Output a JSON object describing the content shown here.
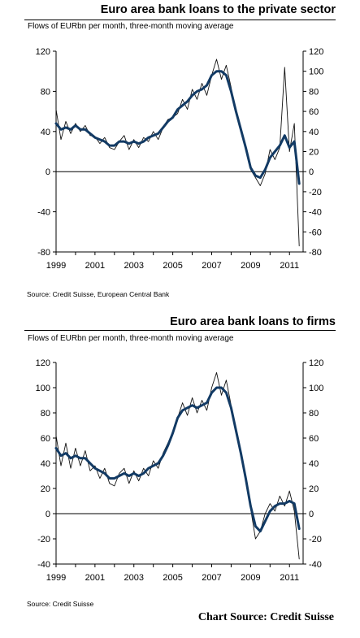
{
  "colors": {
    "raw": "#111111",
    "average": "#123a64"
  },
  "chart_data": [
    {
      "type": "line",
      "title": "Euro area bank loans to the private sector",
      "subtitle": "Flows of EURbn per month, three-month moving average",
      "source": "Source: Credit Suisse, European Central Bank",
      "ylim": [
        -80,
        120
      ],
      "y2lim": [
        -80,
        120
      ],
      "yticks": [
        -80,
        -40,
        0,
        40,
        80,
        120
      ],
      "yticks_right": [
        -80,
        -60,
        -40,
        -20,
        0,
        20,
        40,
        60,
        80,
        100,
        120
      ],
      "xlim": [
        1999.0,
        2011.7
      ],
      "xticks": [
        1999,
        2001,
        2003,
        2005,
        2007,
        2009,
        2011
      ],
      "xtick_labels": [
        "1999",
        "2001",
        "2003",
        "2005",
        "2007",
        "2009",
        "2011"
      ],
      "series": [
        {
          "style": "thin",
          "points": [
            [
              1999.0,
              62
            ],
            [
              1999.25,
              32
            ],
            [
              1999.5,
              50
            ],
            [
              1999.75,
              38
            ],
            [
              2000.0,
              48
            ],
            [
              2000.25,
              40
            ],
            [
              2000.5,
              46
            ],
            [
              2000.75,
              36
            ],
            [
              2001.0,
              35
            ],
            [
              2001.25,
              28
            ],
            [
              2001.5,
              34
            ],
            [
              2001.75,
              24
            ],
            [
              2002.0,
              22
            ],
            [
              2002.25,
              30
            ],
            [
              2002.5,
              36
            ],
            [
              2002.75,
              22
            ],
            [
              2003.0,
              32
            ],
            [
              2003.25,
              24
            ],
            [
              2003.5,
              34
            ],
            [
              2003.75,
              30
            ],
            [
              2004.0,
              40
            ],
            [
              2004.25,
              32
            ],
            [
              2004.5,
              44
            ],
            [
              2004.75,
              52
            ],
            [
              2005.0,
              54
            ],
            [
              2005.25,
              58
            ],
            [
              2005.5,
              72
            ],
            [
              2005.75,
              62
            ],
            [
              2006.0,
              82
            ],
            [
              2006.25,
              72
            ],
            [
              2006.5,
              88
            ],
            [
              2006.75,
              76
            ],
            [
              2007.0,
              96
            ],
            [
              2007.25,
              112
            ],
            [
              2007.5,
              92
            ],
            [
              2007.75,
              106
            ],
            [
              2008.0,
              84
            ],
            [
              2008.25,
              58
            ],
            [
              2008.5,
              44
            ],
            [
              2008.75,
              22
            ],
            [
              2009.0,
              2
            ],
            [
              2009.25,
              -6
            ],
            [
              2009.5,
              -14
            ],
            [
              2009.75,
              -2
            ],
            [
              2010.0,
              22
            ],
            [
              2010.25,
              12
            ],
            [
              2010.5,
              24
            ],
            [
              2010.75,
              104
            ],
            [
              2011.0,
              20
            ],
            [
              2011.25,
              48
            ],
            [
              2011.5,
              -74
            ]
          ]
        },
        {
          "style": "thick",
          "points": [
            [
              1999.0,
              48
            ],
            [
              1999.25,
              42
            ],
            [
              1999.5,
              44
            ],
            [
              1999.75,
              42
            ],
            [
              2000.0,
              46
            ],
            [
              2000.25,
              42
            ],
            [
              2000.5,
              42
            ],
            [
              2000.75,
              38
            ],
            [
              2001.0,
              34
            ],
            [
              2001.25,
              32
            ],
            [
              2001.5,
              30
            ],
            [
              2001.75,
              26
            ],
            [
              2002.0,
              26
            ],
            [
              2002.25,
              30
            ],
            [
              2002.5,
              30
            ],
            [
              2002.75,
              28
            ],
            [
              2003.0,
              30
            ],
            [
              2003.25,
              28
            ],
            [
              2003.5,
              30
            ],
            [
              2003.75,
              34
            ],
            [
              2004.0,
              36
            ],
            [
              2004.25,
              38
            ],
            [
              2004.5,
              44
            ],
            [
              2004.75,
              50
            ],
            [
              2005.0,
              54
            ],
            [
              2005.25,
              62
            ],
            [
              2005.5,
              66
            ],
            [
              2005.75,
              70
            ],
            [
              2006.0,
              76
            ],
            [
              2006.25,
              80
            ],
            [
              2006.5,
              82
            ],
            [
              2006.75,
              86
            ],
            [
              2007.0,
              96
            ],
            [
              2007.25,
              100
            ],
            [
              2007.5,
              100
            ],
            [
              2007.75,
              96
            ],
            [
              2008.0,
              80
            ],
            [
              2008.25,
              60
            ],
            [
              2008.5,
              42
            ],
            [
              2008.75,
              24
            ],
            [
              2009.0,
              4
            ],
            [
              2009.25,
              -4
            ],
            [
              2009.5,
              -6
            ],
            [
              2009.75,
              2
            ],
            [
              2010.0,
              14
            ],
            [
              2010.25,
              20
            ],
            [
              2010.5,
              26
            ],
            [
              2010.75,
              36
            ],
            [
              2011.0,
              24
            ],
            [
              2011.25,
              30
            ],
            [
              2011.5,
              -12
            ]
          ]
        }
      ]
    },
    {
      "type": "line",
      "title": "Euro area bank loans to firms",
      "subtitle": "Flows of EURbn per month, three-month moving average",
      "source": "Source: Credit Suisse",
      "ylim": [
        -40,
        120
      ],
      "y2lim": [
        -40,
        120
      ],
      "yticks": [
        -40,
        -20,
        0,
        20,
        40,
        60,
        80,
        100,
        120
      ],
      "yticks_right": [
        -40,
        -20,
        0,
        20,
        40,
        60,
        80,
        100,
        120
      ],
      "xlim": [
        1999.0,
        2011.7
      ],
      "xticks": [
        1999,
        2001,
        2003,
        2005,
        2007,
        2009,
        2011
      ],
      "xtick_labels": [
        "1999",
        "2001",
        "2003",
        "2005",
        "2007",
        "2009",
        "2011"
      ],
      "series": [
        {
          "style": "thin",
          "points": [
            [
              1999.0,
              62
            ],
            [
              1999.25,
              38
            ],
            [
              1999.5,
              56
            ],
            [
              1999.75,
              36
            ],
            [
              2000.0,
              52
            ],
            [
              2000.25,
              38
            ],
            [
              2000.5,
              50
            ],
            [
              2000.75,
              34
            ],
            [
              2001.0,
              38
            ],
            [
              2001.25,
              28
            ],
            [
              2001.5,
              36
            ],
            [
              2001.75,
              24
            ],
            [
              2002.0,
              22
            ],
            [
              2002.25,
              32
            ],
            [
              2002.5,
              36
            ],
            [
              2002.75,
              24
            ],
            [
              2003.0,
              34
            ],
            [
              2003.25,
              26
            ],
            [
              2003.5,
              36
            ],
            [
              2003.75,
              30
            ],
            [
              2004.0,
              42
            ],
            [
              2004.25,
              36
            ],
            [
              2004.5,
              48
            ],
            [
              2004.75,
              56
            ],
            [
              2005.0,
              64
            ],
            [
              2005.25,
              76
            ],
            [
              2005.5,
              88
            ],
            [
              2005.75,
              78
            ],
            [
              2006.0,
              92
            ],
            [
              2006.25,
              80
            ],
            [
              2006.5,
              90
            ],
            [
              2006.75,
              82
            ],
            [
              2007.0,
              100
            ],
            [
              2007.25,
              112
            ],
            [
              2007.5,
              94
            ],
            [
              2007.75,
              106
            ],
            [
              2008.0,
              86
            ],
            [
              2008.25,
              64
            ],
            [
              2008.5,
              50
            ],
            [
              2008.75,
              30
            ],
            [
              2009.0,
              4
            ],
            [
              2009.25,
              -20
            ],
            [
              2009.5,
              -14
            ],
            [
              2009.75,
              0
            ],
            [
              2010.0,
              8
            ],
            [
              2010.25,
              2
            ],
            [
              2010.5,
              14
            ],
            [
              2010.75,
              6
            ],
            [
              2011.0,
              18
            ],
            [
              2011.25,
              2
            ],
            [
              2011.5,
              -36
            ]
          ]
        },
        {
          "style": "thick",
          "points": [
            [
              1999.0,
              52
            ],
            [
              1999.25,
              46
            ],
            [
              1999.5,
              48
            ],
            [
              1999.75,
              44
            ],
            [
              2000.0,
              46
            ],
            [
              2000.25,
              44
            ],
            [
              2000.5,
              44
            ],
            [
              2000.75,
              40
            ],
            [
              2001.0,
              36
            ],
            [
              2001.25,
              34
            ],
            [
              2001.5,
              32
            ],
            [
              2001.75,
              28
            ],
            [
              2002.0,
              28
            ],
            [
              2002.25,
              30
            ],
            [
              2002.5,
              32
            ],
            [
              2002.75,
              30
            ],
            [
              2003.0,
              32
            ],
            [
              2003.25,
              30
            ],
            [
              2003.5,
              32
            ],
            [
              2003.75,
              36
            ],
            [
              2004.0,
              38
            ],
            [
              2004.25,
              40
            ],
            [
              2004.5,
              46
            ],
            [
              2004.75,
              54
            ],
            [
              2005.0,
              64
            ],
            [
              2005.25,
              76
            ],
            [
              2005.5,
              82
            ],
            [
              2005.75,
              84
            ],
            [
              2006.0,
              86
            ],
            [
              2006.25,
              84
            ],
            [
              2006.5,
              86
            ],
            [
              2006.75,
              88
            ],
            [
              2007.0,
              96
            ],
            [
              2007.25,
              100
            ],
            [
              2007.5,
              100
            ],
            [
              2007.75,
              96
            ],
            [
              2008.0,
              84
            ],
            [
              2008.25,
              66
            ],
            [
              2008.5,
              48
            ],
            [
              2008.75,
              28
            ],
            [
              2009.0,
              6
            ],
            [
              2009.25,
              -10
            ],
            [
              2009.5,
              -14
            ],
            [
              2009.75,
              -6
            ],
            [
              2010.0,
              2
            ],
            [
              2010.25,
              6
            ],
            [
              2010.5,
              8
            ],
            [
              2010.75,
              8
            ],
            [
              2011.0,
              10
            ],
            [
              2011.25,
              8
            ],
            [
              2011.5,
              -12
            ]
          ]
        }
      ]
    }
  ],
  "footer": {
    "credit": "Chart Source: Credit Suisse"
  }
}
